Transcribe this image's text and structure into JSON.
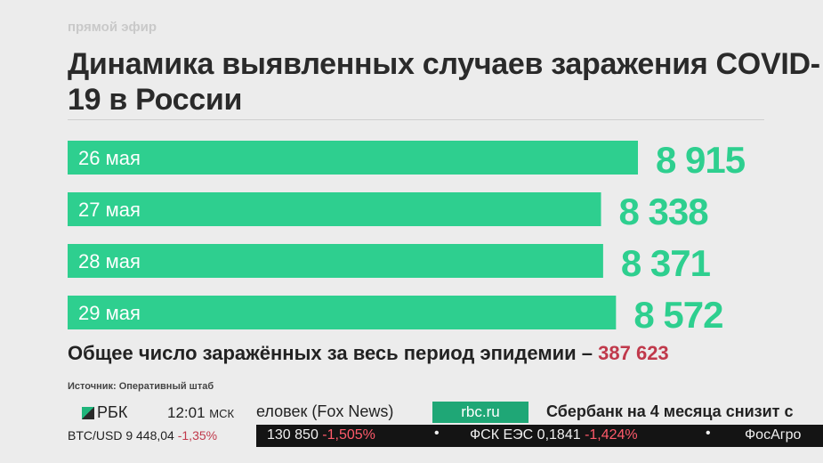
{
  "live_label": "прямой эфир",
  "chart_data": {
    "type": "bar",
    "orientation": "horizontal",
    "title": "Динамика выявленных случаев заражения COVID-19 в России",
    "categories": [
      "26 мая",
      "27 мая",
      "28 мая",
      "29 мая"
    ],
    "values": [
      8915,
      8338,
      8371,
      8572
    ],
    "value_labels": [
      "8 915",
      "8 338",
      "8 371",
      "8 572"
    ],
    "bar_color": "#2ecf8f",
    "xlabel": "",
    "ylabel": ""
  },
  "total": {
    "label": "Общее число заражённых за весь период эпидемии –",
    "value": "387 623"
  },
  "source": "Источник: Оперативный штаб",
  "ticker": {
    "logo": "РБК",
    "time": "12:01",
    "timezone": "МСК",
    "headline1": "еловек (Fox News)",
    "tag": "rbc.ru",
    "headline2": "Сбербанк на 4 месяца снизит с",
    "btc_label": "BTC/USD",
    "btc_value": "9 448,04",
    "btc_change": "-1,35%",
    "q1_value": "130 850",
    "q1_change": "-1,505%",
    "q2_name": "ФСК ЕЭС",
    "q2_value": "0,1841",
    "q2_change": "-1,424%",
    "q3_name": "ФосАгро",
    "separator": "•"
  }
}
